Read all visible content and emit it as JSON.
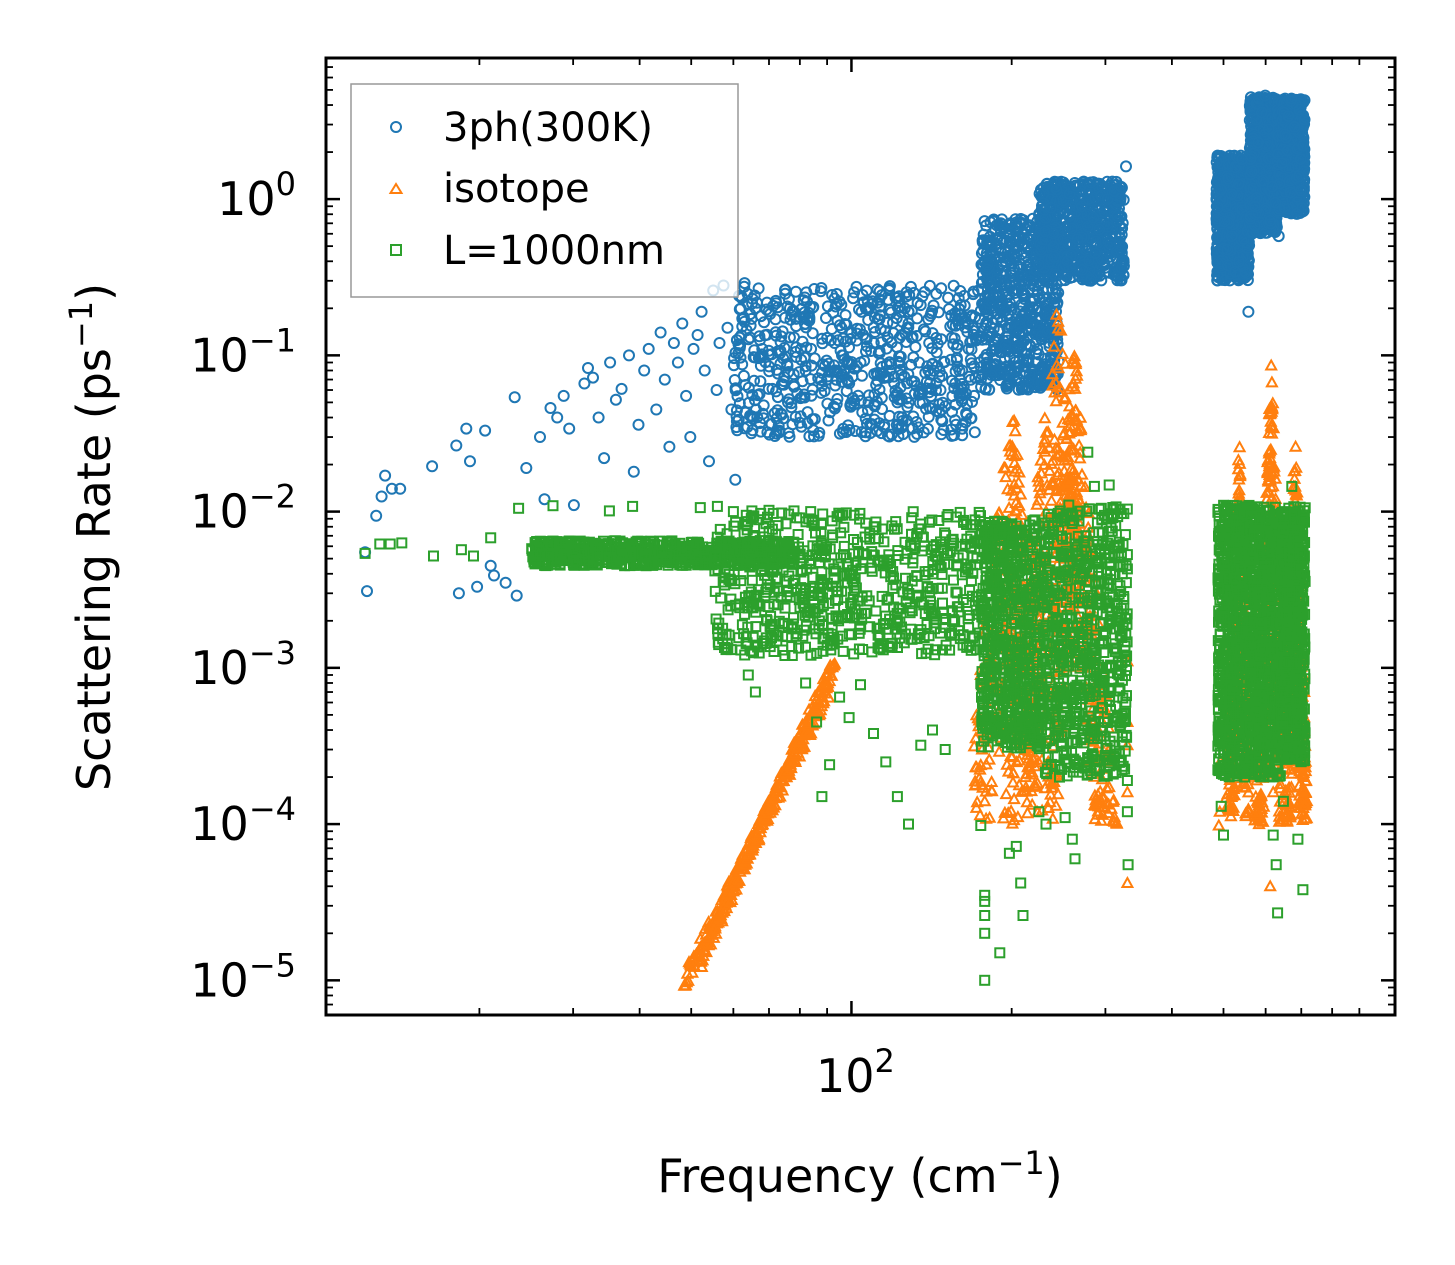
{
  "chart_data": {
    "type": "scatter",
    "title": "",
    "xlabel": "Frequency (cm",
    "xlabel_sup": "−1",
    "xlabel_end": ")",
    "ylabel": "Scattering Rate (ps",
    "ylabel_sup": "−1",
    "ylabel_end": ")",
    "xscale": "log",
    "yscale": "log",
    "xlim": [
      10.3,
      1050
    ],
    "ylim": [
      6e-06,
      8
    ],
    "x_tick_labels": [
      {
        "value": 100,
        "base": "10",
        "exp": "2"
      }
    ],
    "y_tick_labels": [
      {
        "value": 1,
        "base": "10",
        "exp": "0"
      },
      {
        "value": 0.1,
        "base": "10",
        "exp": "−1"
      },
      {
        "value": 0.01,
        "base": "10",
        "exp": "−2"
      },
      {
        "value": 0.001,
        "base": "10",
        "exp": "−3"
      },
      {
        "value": 0.0001,
        "base": "10",
        "exp": "−4"
      },
      {
        "value": 1e-05,
        "base": "10",
        "exp": "−5"
      }
    ],
    "grid": false,
    "legend_position": "top-left",
    "series": [
      {
        "name": "3ph(300K)",
        "marker": "circle",
        "color": "#1f77b4",
        "points": [
          [
            12.2,
            0.0055
          ],
          [
            12.3,
            0.0031
          ],
          [
            12.8,
            0.0094
          ],
          [
            13.1,
            0.0125
          ],
          [
            13.3,
            0.017
          ],
          [
            13.7,
            0.014
          ],
          [
            14.2,
            0.014
          ],
          [
            16.3,
            0.0195
          ],
          [
            18.1,
            0.0265
          ],
          [
            18.3,
            0.003
          ],
          [
            18.9,
            0.034
          ],
          [
            19.2,
            0.021
          ],
          [
            20.5,
            0.033
          ],
          [
            19.8,
            0.0033
          ],
          [
            21,
            0.0045
          ],
          [
            21.3,
            0.0039
          ],
          [
            22.4,
            0.0035
          ],
          [
            23.3,
            0.054
          ],
          [
            23.5,
            0.0029
          ],
          [
            24.5,
            0.019
          ],
          [
            26,
            0.03
          ],
          [
            26.5,
            0.012
          ],
          [
            27.2,
            0.046
          ],
          [
            28,
            0.04
          ],
          [
            28.8,
            0.055
          ],
          [
            29.5,
            0.034
          ],
          [
            30.1,
            0.011
          ],
          [
            31.5,
            0.066
          ],
          [
            32,
            0.083
          ],
          [
            32.7,
            0.072
          ],
          [
            33.5,
            0.04
          ],
          [
            34.3,
            0.022
          ],
          [
            35.2,
            0.09
          ],
          [
            36.1,
            0.052
          ],
          [
            37,
            0.061
          ],
          [
            38.2,
            0.1
          ],
          [
            39,
            0.018
          ],
          [
            39.8,
            0.036
          ],
          [
            40.8,
            0.08
          ],
          [
            41.6,
            0.11
          ],
          [
            43,
            0.045
          ],
          [
            43.8,
            0.14
          ],
          [
            44.6,
            0.07
          ],
          [
            45.5,
            0.026
          ],
          [
            46.4,
            0.12
          ],
          [
            47.2,
            0.09
          ],
          [
            48.1,
            0.16
          ],
          [
            48.9,
            0.055
          ],
          [
            49.8,
            0.03
          ],
          [
            50.5,
            0.11
          ],
          [
            51.4,
            0.135
          ],
          [
            52.3,
            0.19
          ],
          [
            53,
            0.08
          ],
          [
            54,
            0.021
          ],
          [
            55,
            0.26
          ],
          [
            55.8,
            0.06
          ],
          [
            56.5,
            0.12
          ],
          [
            57.5,
            0.28
          ],
          [
            58.5,
            0.15
          ],
          [
            59.5,
            0.045
          ],
          [
            60.5,
            0.016
          ],
          [
            61.5,
            0.24
          ],
          [
            63,
            0.29
          ],
          [
            64.5,
            0.13
          ],
          [
            66,
            0.2
          ],
          [
            68,
            0.11
          ],
          [
            70,
            0.085
          ],
          [
            72,
            0.17
          ],
          [
            74,
            0.065
          ],
          [
            76,
            0.05
          ],
          [
            78,
            0.13
          ],
          [
            80,
            0.037
          ],
          [
            82,
            0.08
          ],
          [
            84,
            0.11
          ],
          [
            87,
            0.032
          ],
          [
            90,
            0.07
          ],
          [
            93,
            0.12
          ],
          [
            96,
            0.1
          ],
          [
            100,
            0.14
          ],
          [
            104,
            0.09
          ],
          [
            108,
            0.2
          ],
          [
            112,
            0.075
          ],
          [
            117,
            0.13
          ],
          [
            122,
            0.05
          ],
          [
            128,
            0.16
          ],
          [
            134,
            0.09
          ],
          [
            140,
            0.12
          ],
          [
            147,
            0.06
          ],
          [
            154,
            0.18
          ],
          [
            160,
            0.07
          ],
          [
            166,
            0.11
          ],
          [
            170,
            0.055
          ],
          [
            174,
            0.13
          ],
          [
            178,
            0.2
          ],
          [
            180,
            0.38
          ],
          [
            183,
            0.52
          ],
          [
            187,
            0.3
          ],
          [
            191,
            0.62
          ],
          [
            195,
            0.26
          ],
          [
            199,
            0.7
          ],
          [
            204,
            0.42
          ],
          [
            209,
            0.32
          ],
          [
            214,
            0.5
          ],
          [
            219,
            0.23
          ],
          [
            225,
            0.38
          ],
          [
            231,
            0.62
          ],
          [
            237,
            0.88
          ],
          [
            243,
            1.15
          ],
          [
            250,
            0.98
          ],
          [
            257,
            1.08
          ],
          [
            264,
            1.22
          ],
          [
            271,
            0.9
          ],
          [
            279,
            1.0
          ],
          [
            287,
            1.02
          ],
          [
            295,
            1.05
          ],
          [
            303,
            1.0
          ],
          [
            312,
            1.12
          ],
          [
            321,
            1.2
          ],
          [
            328,
            1.62
          ],
          [
            488,
            0.88
          ],
          [
            495,
            1.15
          ],
          [
            502,
            0.72
          ],
          [
            510,
            1.35
          ],
          [
            518,
            0.58
          ],
          [
            526,
            1.6
          ],
          [
            534,
            1.25
          ],
          [
            542,
            1.8
          ],
          [
            550,
            0.34
          ],
          [
            557,
            0.19
          ],
          [
            565,
            1.5
          ],
          [
            573,
            0.9
          ],
          [
            581,
            2.3
          ],
          [
            590,
            3.6
          ],
          [
            599,
            4.6
          ],
          [
            608,
            2.8
          ],
          [
            617,
            1.2
          ],
          [
            626,
            0.95
          ],
          [
            635,
            0.58
          ],
          [
            644,
            1.7
          ],
          [
            653,
            2.6
          ],
          [
            662,
            3.4
          ],
          [
            671,
            4.4
          ],
          [
            680,
            2.9
          ],
          [
            689,
            2.1
          ],
          [
            698,
            1.8
          ],
          [
            706,
            2.2
          ]
        ],
        "bands": [
          {
            "x": [
              60,
              175
            ],
            "y": [
              0.03,
              0.28
            ]
          },
          {
            "x": [
              175,
              245
            ],
            "y": [
              0.06,
              0.75
            ]
          },
          {
            "x": [
              225,
              325
            ],
            "y": [
              0.3,
              1.3
            ]
          },
          {
            "x": [
              485,
              560
            ],
            "y": [
              0.3,
              1.9
            ]
          },
          {
            "x": [
              560,
              630
            ],
            "y": [
              0.6,
              4.5
            ]
          },
          {
            "x": [
              630,
              710
            ],
            "y": [
              0.8,
              4.4
            ]
          }
        ]
      },
      {
        "name": "isotope",
        "marker": "triangle",
        "color": "#ff7f0e",
        "points": [
          [
            330,
            0.00045
          ],
          [
            330,
            0.00032
          ],
          [
            330,
            0.00016
          ],
          [
            330,
            4.2e-05
          ],
          [
            330,
            0.0011
          ],
          [
            490,
            9.8e-05
          ],
          [
            492,
            0.00012
          ],
          [
            493,
            0.00025
          ],
          [
            605,
            0.00021
          ],
          [
            612,
            4e-05
          ],
          [
            620,
            0.00016
          ],
          [
            702,
            0.00021
          ],
          [
            709,
            0.0007
          ],
          [
            175,
            0.0009
          ],
          [
            178,
            0.00014
          ],
          [
            176,
            0.0003
          ]
        ],
        "ridges": [
          {
            "x": [
              48.5,
              91
            ],
            "y": [
              1e-05,
              0.00075
            ]
          },
          {
            "x": [
              52,
              93
            ],
            "y": [
              1.3e-05,
              0.0011
            ]
          }
        ],
        "peaks": [
          {
            "x": [
              170,
              262
            ],
            "center": 200,
            "peak": 0.055
          },
          {
            "x": [
              175,
              265
            ],
            "center": 245,
            "peak": 0.26
          },
          {
            "x": [
              236,
              330
            ],
            "center": 262,
            "peak": 0.12
          },
          {
            "x": [
              490,
              560
            ],
            "center": 535,
            "peak": 0.032
          },
          {
            "x": [
              560,
              640
            ],
            "center": 615,
            "peak": 0.1
          },
          {
            "x": [
              640,
              720
            ],
            "center": 682,
            "peak": 0.033
          }
        ]
      },
      {
        "name": "L=1000nm",
        "marker": "square",
        "color": "#2ca02c",
        "points": [
          [
            12.2,
            0.0054
          ],
          [
            13,
            0.0062
          ],
          [
            13.6,
            0.0062
          ],
          [
            14.3,
            0.0063
          ],
          [
            16.4,
            0.0052
          ],
          [
            18.5,
            0.0057
          ],
          [
            19.5,
            0.0052
          ],
          [
            21,
            0.0068
          ],
          [
            23.7,
            0.0105
          ],
          [
            26.2,
            0.0053
          ],
          [
            27.5,
            0.0109
          ],
          [
            29.2,
            0.0052
          ],
          [
            32,
            0.0062
          ],
          [
            35.1,
            0.0101
          ],
          [
            38.8,
            0.0108
          ],
          [
            41,
            0.0052
          ],
          [
            44,
            0.0061
          ],
          [
            48,
            0.0053
          ],
          [
            52,
            0.0106
          ],
          [
            56,
            0.0108
          ],
          [
            60,
            0.01
          ],
          [
            65,
            0.0101
          ],
          [
            70,
            0.0102
          ],
          [
            78,
            0.0101
          ],
          [
            62,
            0.0013
          ],
          [
            64,
            0.0009
          ],
          [
            66,
            0.0007
          ],
          [
            71,
            0.0019
          ],
          [
            75,
            0.0012
          ],
          [
            82,
            0.0008
          ],
          [
            86,
            0.00045
          ],
          [
            88,
            0.00015
          ],
          [
            91,
            0.00024
          ],
          [
            95,
            0.00065
          ],
          [
            99,
            0.00048
          ],
          [
            104,
            0.00078
          ],
          [
            110,
            0.00038
          ],
          [
            116,
            0.00025
          ],
          [
            122,
            0.00015
          ],
          [
            128,
            0.0001
          ],
          [
            135,
            0.00032
          ],
          [
            142,
            0.0004
          ],
          [
            150,
            0.0003
          ],
          [
            175,
            9.8e-05
          ],
          [
            178,
            3.5e-05
          ],
          [
            178,
            3.2e-05
          ],
          [
            178,
            2.6e-05
          ],
          [
            178,
            2e-05
          ],
          [
            178,
            1e-05
          ],
          [
            190,
            1.5e-05
          ],
          [
            198,
            6.5e-05
          ],
          [
            204,
            7.2e-05
          ],
          [
            208,
            4.2e-05
          ],
          [
            210,
            2.6e-05
          ],
          [
            225,
            0.00012
          ],
          [
            232,
            0.0001
          ],
          [
            246,
            0.0002
          ],
          [
            252,
            0.00011
          ],
          [
            260,
            8e-05
          ],
          [
            263,
            6e-05
          ],
          [
            278,
            0.024
          ],
          [
            286,
            0.0145
          ],
          [
            305,
            0.0148
          ],
          [
            330,
            0.0043
          ],
          [
            330,
            0.00019
          ],
          [
            330,
            0.00012
          ],
          [
            331,
            5.5e-05
          ],
          [
            490,
            0.00022
          ],
          [
            495,
            0.00013
          ],
          [
            500,
            8.5e-05
          ],
          [
            530,
            0.0014
          ],
          [
            545,
            0.0003
          ],
          [
            610,
            0.00022
          ],
          [
            620,
            8.5e-05
          ],
          [
            628,
            5.5e-05
          ],
          [
            632,
            2.7e-05
          ],
          [
            648,
            0.00014
          ],
          [
            660,
            0.00035
          ],
          [
            690,
            8e-05
          ],
          [
            705,
            3.8e-05
          ],
          [
            672,
            0.0145
          ],
          [
            680,
            0.0095
          ],
          [
            700,
            0.0042
          ]
        ],
        "bands": [
          {
            "x": [
              25,
              78
            ],
            "y": [
              0.0045,
              0.0065
            ]
          },
          {
            "x": [
              55,
              175
            ],
            "y": [
              0.0012,
              0.01
            ]
          },
          {
            "x": [
              175,
              230
            ],
            "y": [
              0.0003,
              0.009
            ]
          },
          {
            "x": [
              230,
              330
            ],
            "y": [
              0.0002,
              0.011
            ]
          },
          {
            "x": [
              488,
              560
            ],
            "y": [
              0.0002,
              0.011
            ]
          },
          {
            "x": [
              560,
              640
            ],
            "y": [
              0.0002,
              0.011
            ]
          },
          {
            "x": [
              640,
              712
            ],
            "y": [
              0.00025,
              0.011
            ]
          }
        ]
      }
    ]
  }
}
